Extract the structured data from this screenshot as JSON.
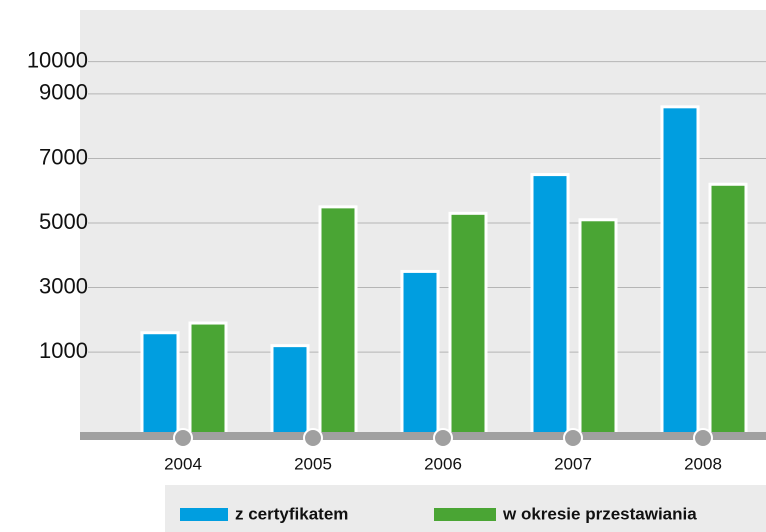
{
  "chart_data": {
    "type": "bar",
    "categories": [
      "2004",
      "2005",
      "2006",
      "2007",
      "2008"
    ],
    "series": [
      {
        "name": "z certyfikatem",
        "color": "#009ee0",
        "values": [
          1600,
          1200,
          3500,
          6500,
          8600
        ]
      },
      {
        "name": "w okresie przestawiania",
        "color": "#4aa534",
        "values": [
          1900,
          5500,
          5300,
          5100,
          6200
        ]
      }
    ],
    "ylim": [
      -1600,
      11600
    ],
    "yticks": [
      1000,
      3000,
      5000,
      7000,
      9000,
      10000
    ],
    "grid": true
  }
}
